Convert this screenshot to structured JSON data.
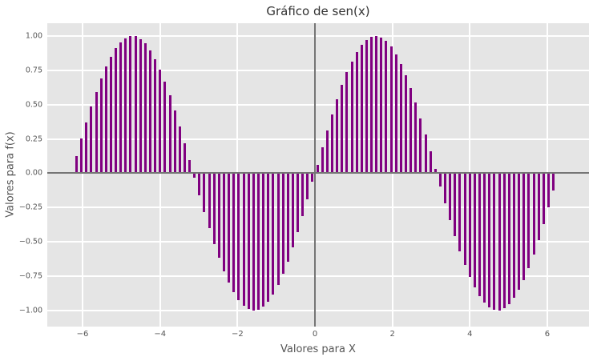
{
  "chart_data": {
    "type": "bar",
    "title": "Gráfico de sen(x)",
    "xlabel": "Valores para X",
    "ylabel": "Valores para f(x)",
    "x": [
      -6.2832,
      -6.1563,
      -6.0293,
      -5.9024,
      -5.7755,
      -5.6485,
      -5.5216,
      -5.3946,
      -5.2677,
      -5.1408,
      -5.0139,
      -4.8869,
      -4.76,
      -4.633,
      -4.5061,
      -4.3792,
      -4.2522,
      -4.1253,
      -3.9984,
      -3.8714,
      -3.7445,
      -3.6175,
      -3.4906,
      -3.3637,
      -3.2367,
      -3.1098,
      -2.9829,
      -2.8559,
      -2.729,
      -2.602,
      -2.4751,
      -2.3482,
      -2.2212,
      -2.0943,
      -1.9674,
      -1.8404,
      -1.7135,
      -1.5865,
      -1.4596,
      -1.3327,
      -1.2057,
      -1.0788,
      -0.9519,
      -0.8249,
      -0.698,
      -0.571,
      -0.4441,
      -0.3172,
      -0.1902,
      -0.0633,
      0.0633,
      0.1902,
      0.3172,
      0.4441,
      0.571,
      0.698,
      0.8249,
      0.9519,
      1.0788,
      1.2057,
      1.3327,
      1.4596,
      1.5865,
      1.7135,
      1.8404,
      1.9674,
      2.0943,
      2.2212,
      2.3482,
      2.4751,
      2.602,
      2.729,
      2.8559,
      2.9829,
      3.1098,
      3.2367,
      3.3637,
      3.4906,
      3.6175,
      3.7445,
      3.8714,
      3.9984,
      4.1253,
      4.2522,
      4.3792,
      4.5061,
      4.633,
      4.76,
      4.8869,
      5.0139,
      5.1408,
      5.2677,
      5.3946,
      5.5216,
      5.6485,
      5.7755,
      5.9024,
      6.0293,
      6.1563,
      6.2832
    ],
    "y": [
      0.0,
      0.1266,
      0.2511,
      0.3717,
      0.4862,
      0.5929,
      0.6901,
      0.7761,
      0.8497,
      0.9096,
      0.9549,
      0.9848,
      0.9989,
      0.9969,
      0.9788,
      0.945,
      0.896,
      0.8326,
      0.7558,
      0.6668,
      0.5671,
      0.4582,
      0.342,
      0.2203,
      0.0951,
      -0.0317,
      -0.158,
      -0.2817,
      -0.4009,
      -0.5137,
      -0.6182,
      -0.7127,
      -0.7958,
      -0.866,
      -0.9224,
      -0.9638,
      -0.9898,
      -0.9999,
      -0.9938,
      -0.9718,
      -0.9342,
      -0.8815,
      -0.8146,
      -0.7346,
      -0.6424,
      -0.5406,
      -0.4298,
      -0.312,
      -0.1893,
      -0.0634,
      0.0634,
      0.1893,
      0.312,
      0.4298,
      0.5406,
      0.6424,
      0.7346,
      0.8146,
      0.8815,
      0.9342,
      0.9718,
      0.9938,
      0.9999,
      0.9898,
      0.9638,
      0.9224,
      0.866,
      0.7958,
      0.7127,
      0.6182,
      0.5137,
      0.4009,
      0.2817,
      0.158,
      0.0317,
      -0.0951,
      -0.2203,
      -0.342,
      -0.4582,
      -0.5671,
      -0.6668,
      -0.7558,
      -0.8326,
      -0.896,
      -0.945,
      -0.9788,
      -0.9969,
      -0.9989,
      -0.9848,
      -0.9549,
      -0.9096,
      -0.8497,
      -0.7761,
      -0.6901,
      -0.5929,
      -0.4862,
      -0.3717,
      -0.2511,
      -0.1266,
      0.0
    ],
    "bar_width_units": 0.06,
    "xlim": [
      -6.911,
      7.076
    ],
    "ylim": [
      -1.117,
      1.093
    ],
    "xticks": [
      -6,
      -4,
      -2,
      0,
      2,
      4,
      6
    ],
    "xtick_labels": [
      "−6",
      "−4",
      "−2",
      "0",
      "2",
      "4",
      "6"
    ],
    "yticks": [
      1.0,
      0.75,
      0.5,
      0.25,
      0.0,
      -0.25,
      -0.5,
      -0.75,
      -1.0
    ],
    "ytick_labels": [
      "1.00",
      "0.75",
      "0.50",
      "0.25",
      "0.00",
      "−0.25",
      "−0.50",
      "−0.75",
      "−1.00"
    ],
    "grid": true,
    "legend": false,
    "zero_lines": true,
    "colors": {
      "bar": "#800080",
      "axes_background": "#e5e5e5",
      "figure_background": "#ffffff",
      "grid": "#ffffff",
      "zero_line": "#757575",
      "tick_label": "#555555",
      "axis_label": "#555555",
      "title": "#333333"
    }
  }
}
